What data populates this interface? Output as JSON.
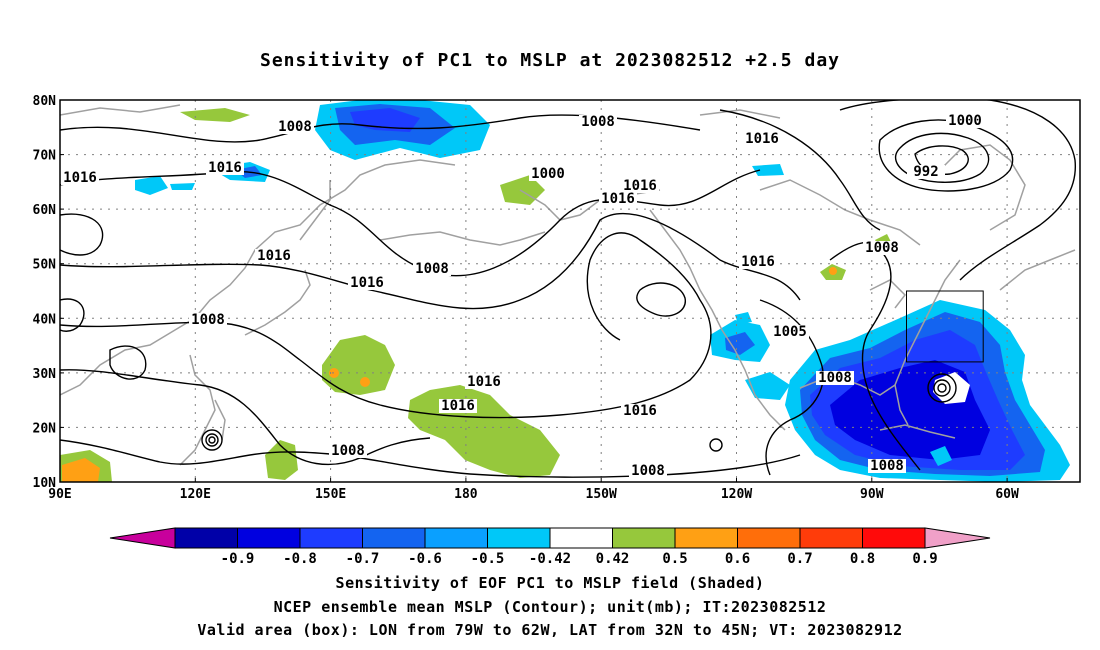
{
  "title": "Sensitivity of PC1 to MSLP at 2023082512 +2.5 day",
  "map": {
    "lat_ticks": [
      "80N",
      "70N",
      "60N",
      "50N",
      "40N",
      "30N",
      "20N",
      "10N"
    ],
    "lon_ticks": [
      "90E",
      "120E",
      "150E",
      "180",
      "150W",
      "120W",
      "90W",
      "60W"
    ],
    "contour_labels": [
      "1008",
      "1008",
      "1008",
      "1008",
      "1008",
      "1008",
      "1008",
      "1008",
      "1008",
      "1000",
      "1000",
      "992",
      "1016",
      "1016",
      "1016",
      "1016",
      "1016",
      "1016",
      "1016",
      "1016",
      "1016",
      "1016",
      "1016",
      "1005"
    ],
    "valid_box": {
      "lon_min": -79,
      "lon_max": -62,
      "lat_min": 32,
      "lat_max": 45
    },
    "colors": {
      "contour": "#000000",
      "coast": "#a0a0a0",
      "grid": "#808080"
    }
  },
  "colorbar": {
    "labels": [
      "-0.9",
      "-0.8",
      "-0.7",
      "-0.6",
      "-0.5",
      "-0.42",
      "0.42",
      "0.5",
      "0.6",
      "0.7",
      "0.8",
      "0.9"
    ],
    "colors": [
      "#c8009c",
      "#0000a8",
      "#0000e0",
      "#1e3cff",
      "#1464f0",
      "#0aa0ff",
      "#00c8f8",
      "#ffffff",
      "#96c83c",
      "#ffa014",
      "#ff6e0a",
      "#ff3c0a",
      "#ff0a0a",
      "#f0a0c8"
    ]
  },
  "caption": {
    "line1": "Sensitivity of EOF PC1 to MSLP field (Shaded)",
    "line2": "NCEP ensemble mean MSLP (Contour); unit(mb); IT:2023082512",
    "line3": "Valid area (box): LON from 79W to 62W, LAT from 32N to 45N; VT: 2023082912"
  }
}
